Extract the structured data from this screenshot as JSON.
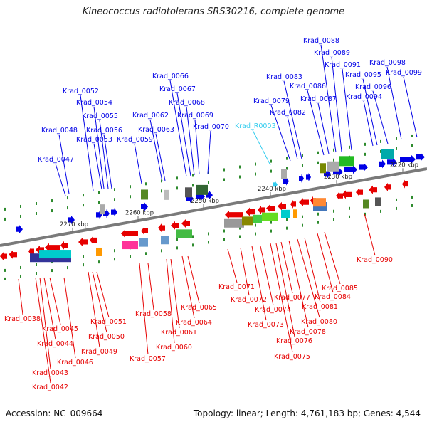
{
  "title": "Kineococcus radiotolerans SRS30216, complete genome",
  "footer": {
    "accession": "Accession: NC_009664",
    "summary": "Topology: linear; Length: 4,761,183 bp; Genes: 4,544"
  },
  "colors": {
    "forward": "#0000e6",
    "reverse": "#e60000",
    "rna": "#33ccee",
    "backbone": "#7a7a7a",
    "tick": "#2e8b2e"
  },
  "scale_labels": [
    "2270 kbp",
    "2260 kbp",
    "2250 kbp",
    "2240 kbp",
    "2230 kbp",
    "2220 kbp"
  ],
  "top_labels": [
    {
      "text": "Krad_0047",
      "color": "blue"
    },
    {
      "text": "Krad_0048",
      "color": "blue"
    },
    {
      "text": "Krad_0052",
      "color": "blue"
    },
    {
      "text": "Krad_0053",
      "color": "blue"
    },
    {
      "text": "Krad_0054",
      "color": "blue"
    },
    {
      "text": "Krad_0055",
      "color": "blue"
    },
    {
      "text": "Krad_0056",
      "color": "blue"
    },
    {
      "text": "Krad_0059",
      "color": "blue"
    },
    {
      "text": "Krad_0062",
      "color": "blue"
    },
    {
      "text": "Krad_0063",
      "color": "blue"
    },
    {
      "text": "Krad_0066",
      "color": "blue"
    },
    {
      "text": "Krad_0067",
      "color": "blue"
    },
    {
      "text": "Krad_0068",
      "color": "blue"
    },
    {
      "text": "Krad_0069",
      "color": "blue"
    },
    {
      "text": "Krad_0070",
      "color": "blue"
    },
    {
      "text": "Krad_R0003",
      "color": "rna"
    },
    {
      "text": "Krad_0079",
      "color": "blue"
    },
    {
      "text": "Krad_0082",
      "color": "blue"
    },
    {
      "text": "Krad_0083",
      "color": "blue"
    },
    {
      "text": "Krad_0086",
      "color": "blue"
    },
    {
      "text": "Krad_0087",
      "color": "blue"
    },
    {
      "text": "Krad_0088",
      "color": "blue"
    },
    {
      "text": "Krad_0089",
      "color": "blue"
    },
    {
      "text": "Krad_0091",
      "color": "blue"
    },
    {
      "text": "Krad_0094",
      "color": "blue"
    },
    {
      "text": "Krad_0095",
      "color": "blue"
    },
    {
      "text": "Krad_0096",
      "color": "blue"
    },
    {
      "text": "Krad_0098",
      "color": "blue"
    },
    {
      "text": "Krad_0099",
      "color": "blue"
    }
  ],
  "bottom_labels": [
    {
      "text": "Krad_0038"
    },
    {
      "text": "Krad_0042"
    },
    {
      "text": "Krad_0043"
    },
    {
      "text": "Krad_0044"
    },
    {
      "text": "Krad_0045"
    },
    {
      "text": "Krad_0046"
    },
    {
      "text": "Krad_0049"
    },
    {
      "text": "Krad_0050"
    },
    {
      "text": "Krad_0051"
    },
    {
      "text": "Krad_0057"
    },
    {
      "text": "Krad_0058"
    },
    {
      "text": "Krad_0060"
    },
    {
      "text": "Krad_0061"
    },
    {
      "text": "Krad_0064"
    },
    {
      "text": "Krad_0065"
    },
    {
      "text": "Krad_0071"
    },
    {
      "text": "Krad_0072"
    },
    {
      "text": "Krad_0073"
    },
    {
      "text": "Krad_0074"
    },
    {
      "text": "Krad_0075"
    },
    {
      "text": "Krad_0076"
    },
    {
      "text": "Krad_0077"
    },
    {
      "text": "Krad_0078"
    },
    {
      "text": "Krad_0080"
    },
    {
      "text": "Krad_0081"
    },
    {
      "text": "Krad_0084"
    },
    {
      "text": "Krad_0085"
    },
    {
      "text": "Krad_0090"
    }
  ]
}
